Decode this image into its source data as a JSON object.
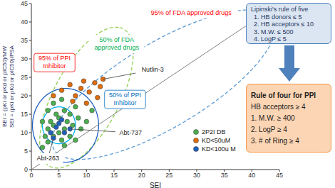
{
  "chart_data": {
    "type": "scatter",
    "x_label": "SEI",
    "y_label": [
      "BEI = (pKi or pKd or pIC50)/MW",
      "SEI = (pKi or pKd or pIC50)/PSA"
    ],
    "xlim": [
      0,
      45
    ],
    "ylim": [
      0,
      45
    ],
    "xticks": [
      0,
      5,
      10,
      15,
      20,
      25,
      30,
      35,
      40,
      45
    ],
    "yticks": [
      0,
      5,
      10,
      15,
      20,
      25,
      30,
      35,
      40,
      45
    ],
    "grid": false,
    "legend": "lower right",
    "series": [
      {
        "name": "2P2I DB",
        "color": "#4caf50",
        "x": [
          2,
          2.5,
          3,
          3,
          3.5,
          4,
          4,
          4.5,
          5,
          5,
          5.5,
          6,
          6,
          6.5,
          7,
          7,
          7.5,
          8,
          8.5,
          9,
          4,
          3,
          2,
          5.5,
          10,
          11,
          6,
          8
        ],
        "y": [
          6,
          9,
          7.5,
          11,
          13,
          9,
          12,
          15,
          10,
          14,
          8,
          11,
          16,
          13,
          9,
          15,
          12,
          17,
          14,
          11,
          18,
          16,
          13,
          19,
          13,
          16,
          6.5,
          8
        ]
      },
      {
        "name": "KD<50uM",
        "color": "#e36c0a",
        "x": [
          4,
          5.5,
          7,
          8,
          9,
          9.5,
          10.5,
          11.5,
          12.5,
          13,
          10,
          7.5,
          12
        ],
        "y": [
          20,
          21.5,
          23,
          20,
          22,
          24,
          21,
          23.5,
          22.5,
          24.5,
          18,
          18.5,
          19.5
        ]
      },
      {
        "name": "KD<100u M",
        "color": "#1f5fbf",
        "x": [
          3.5,
          4.5,
          5,
          6,
          5.5,
          7,
          4
        ],
        "y": [
          10,
          11.5,
          12.5,
          10,
          13.5,
          11,
          8.5
        ]
      }
    ],
    "regions": [
      {
        "center": [
          24,
          23
        ],
        "major_end": [
          43,
          42
        ],
        "minor_end": [
          17,
          30
        ],
        "color": "#5b9bd5",
        "line_style": "dashed",
        "label": {
          "lines": [
            "95% of FDA approved drugs"
          ],
          "x": 29,
          "y": 42.5,
          "color": "#ff0000"
        }
      },
      {
        "center": [
          10,
          19.5
        ],
        "major_end": [
          16,
          38.5
        ],
        "minor_end": [
          16,
          17.5
        ],
        "color": "#92d050",
        "line_style": "dashed",
        "label": {
          "lines": [
            "50% of FDA",
            "approved drugs"
          ],
          "x": 15.5,
          "y": 34,
          "color": "#00b050"
        }
      },
      {
        "center": [
          6.2,
          12
        ],
        "major_end": [
          6.2,
          22
        ],
        "minor_end": [
          12.2,
          12
        ],
        "color": "#1f5fbf",
        "line_style": "solid",
        "label": {
          "lines": [
            "95% of PPI",
            "Inhibitor"
          ],
          "x": 4.2,
          "y": 29,
          "color": "#ff0000"
        }
      },
      {
        "center": [
          5,
          12
        ],
        "major_end": [
          5,
          17
        ],
        "minor_end": [
          8,
          12
        ],
        "color": "#00b0f0",
        "line_style": "solid",
        "label": {
          "lines": [
            "50% of PPI",
            "Inhibitor"
          ],
          "x": 17,
          "y": 19,
          "color": "#0070c0"
        }
      }
    ],
    "reference_line": {
      "points": [
        [
          0,
          0
        ],
        [
          45,
          45
        ]
      ],
      "color": "#808080"
    },
    "annotations": [
      {
        "text": "Nutlin-3",
        "point": [
          13,
          24.5
        ],
        "text_at": [
          22,
          27
        ]
      },
      {
        "text": "Abt-737",
        "point": [
          7,
          11
        ],
        "text_at": [
          18,
          10
        ]
      },
      {
        "text": "Abt-263",
        "point": [
          4,
          8.5
        ],
        "text_at": [
          3,
          3
        ]
      }
    ]
  },
  "side_panels": [
    {
      "title": "Lipinski's rule of five",
      "items": [
        "1. HB donors ≤ 5",
        "2. HB acceptors ≤ 10",
        "3. M.W. ≤ 500",
        "4. LogP ≤ 5"
      ],
      "color": "#4f81bd"
    },
    {
      "title": "Rule of four for PPI",
      "items": [
        "HB acceptors ≥ 4",
        "1. M.W. ≥ 400",
        "2. LogP ≥ 4",
        "3. # of Ring ≥ 4"
      ],
      "color": "#f79646"
    }
  ]
}
